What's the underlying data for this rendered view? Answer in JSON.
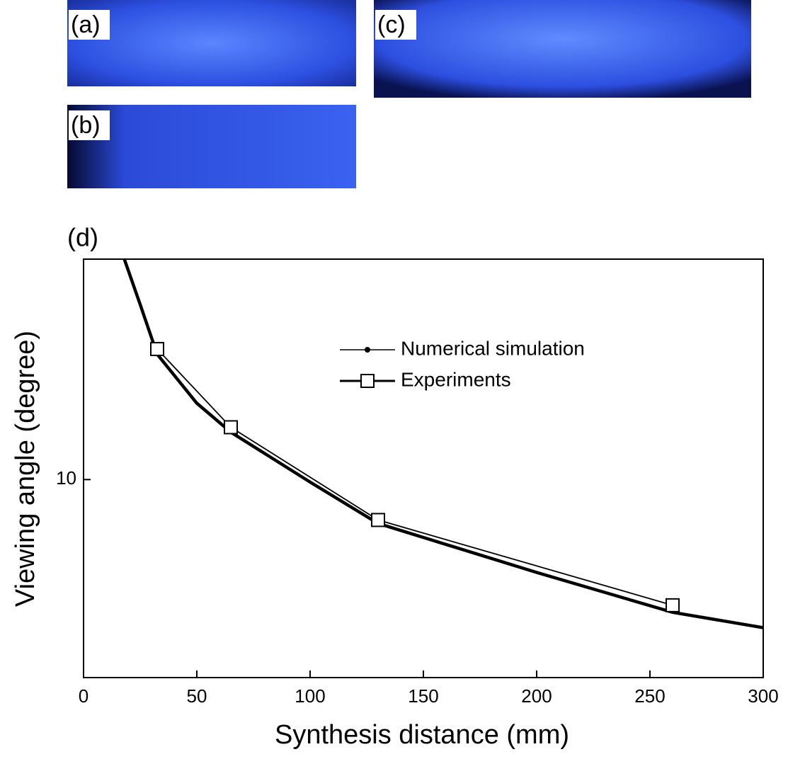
{
  "panel_labels": [
    "(a)",
    "(b)",
    "(c)",
    "(d)"
  ],
  "chart_data": {
    "type": "line",
    "xlabel": "Synthesis distance (mm)",
    "ylabel": "Viewing angle (degree)",
    "xlim": [
      0,
      300
    ],
    "xticks": [
      0,
      50,
      100,
      150,
      200,
      250,
      300
    ],
    "ylim": [
      2,
      60
    ],
    "yticks": [
      10
    ],
    "log_y": true,
    "legend": "upper-right",
    "series": [
      {
        "name": "Numerical simulation",
        "color": "#000000",
        "marker": "dot",
        "x": [
          18,
          25,
          32.5,
          50,
          65,
          100,
          130,
          200,
          260,
          300
        ],
        "values": [
          60,
          41.5,
          27.7,
          18.6,
          14.7,
          9.8,
          7.0,
          4.7,
          3.4,
          3.0
        ]
      },
      {
        "name": "Experiments",
        "color": "#000000",
        "marker": "square",
        "x": [
          32.5,
          65,
          130,
          260
        ],
        "values": [
          28.9,
          15.3,
          7.2,
          3.6
        ]
      }
    ]
  }
}
